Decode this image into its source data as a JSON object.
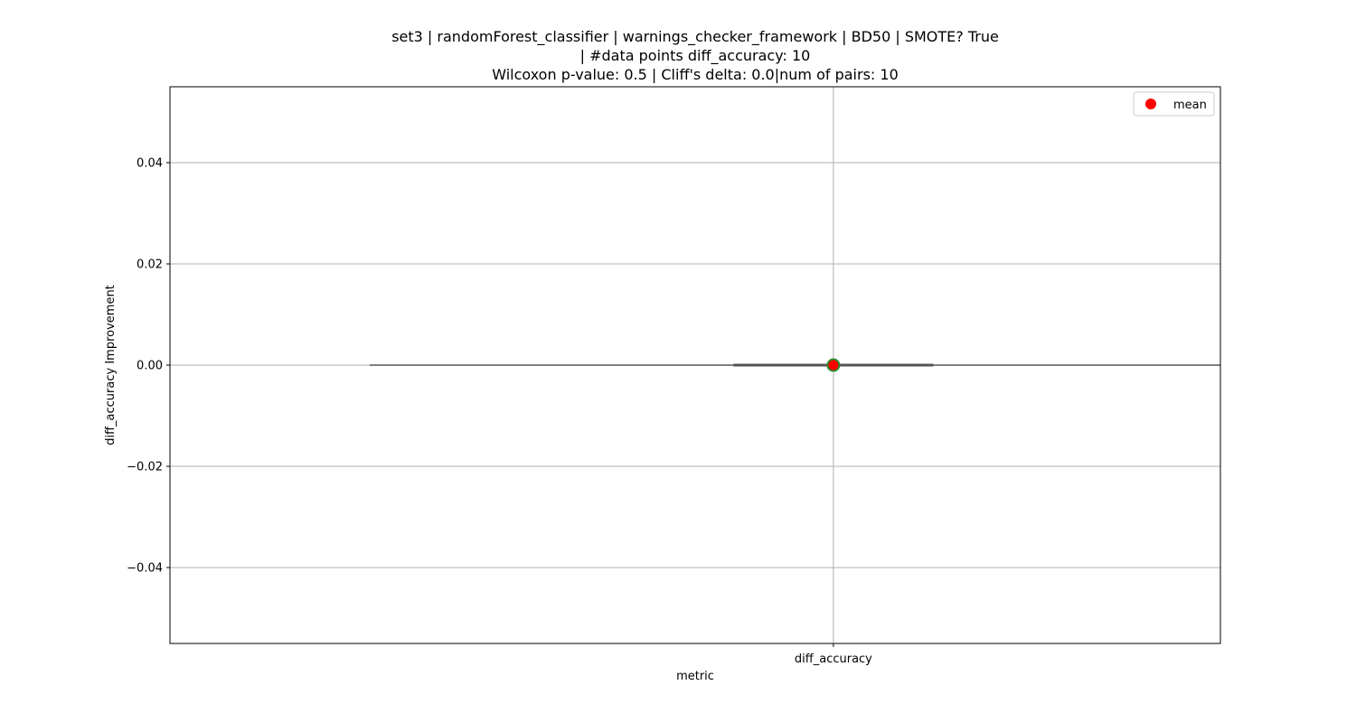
{
  "chart_data": {
    "type": "box",
    "title_lines": [
      "set3 | randomForest_classifier | warnings_checker_framework | BD50 | SMOTE? True",
      "| #data points diff_accuracy: 10",
      "Wilcoxon p-value: 0.5 | Cliff's delta: 0.0|num of pairs: 10"
    ],
    "xlabel": "metric",
    "ylabel": "diff_accuracy Improvement",
    "categories": [
      "diff_accuracy"
    ],
    "ylim": [
      -0.055,
      0.055
    ],
    "yticks": [
      -0.04,
      -0.02,
      0.0,
      0.02,
      0.04
    ],
    "ytick_labels": [
      "−0.04",
      "−0.02",
      "0.00",
      "0.02",
      "0.04"
    ],
    "grid": true,
    "box": {
      "category": "diff_accuracy",
      "min": 0.0,
      "q1": 0.0,
      "median": 0.0,
      "q3": 0.0,
      "max": 0.0,
      "mean": 0.0
    },
    "legend": {
      "position": "top-right",
      "entries": [
        {
          "label": "mean",
          "marker": "circle",
          "color": "#ff0000"
        }
      ]
    },
    "colors": {
      "mean_fill": "#ff0000",
      "mean_edge": "#2e8b2e",
      "box_edge": "#555555",
      "grid": "#b0b0b0"
    }
  }
}
